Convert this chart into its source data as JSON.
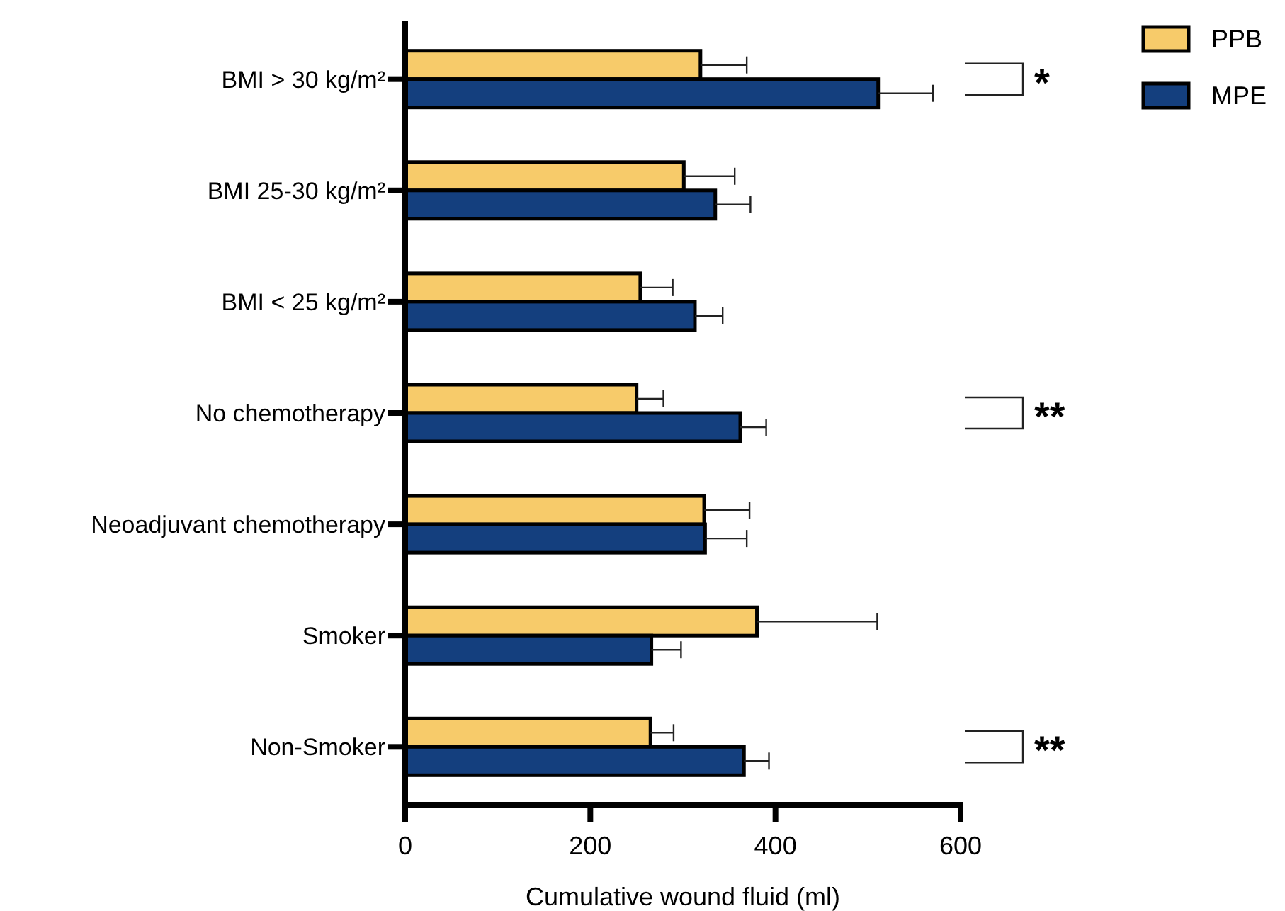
{
  "chart_data": {
    "type": "bar",
    "orientation": "horizontal",
    "xlabel": "Cumulative wound fluid (ml)",
    "categories": [
      "BMI > 30 kg/m²",
      "BMI 25-30 kg/m²",
      "BMI < 25 kg/m²",
      "No chemotherapy",
      "Neoadjuvant chemotherapy",
      "Smoker",
      "Non-Smoker"
    ],
    "series": [
      {
        "name": "PPB",
        "color": "#f7cb6a",
        "values": [
          319,
          301,
          254,
          250,
          323,
          380,
          265
        ],
        "errors": [
          50,
          55,
          35,
          29,
          49,
          130,
          25
        ]
      },
      {
        "name": "MPE",
        "color": "#143f7e",
        "values": [
          511,
          335,
          313,
          362,
          324,
          266,
          366
        ],
        "errors": [
          59,
          38,
          30,
          28,
          45,
          32,
          27
        ]
      }
    ],
    "xlim": [
      0,
      600
    ],
    "xticks": [
      0,
      200,
      400,
      600
    ],
    "legend": "top right",
    "grid": false,
    "annotations": [
      "*",
      "**",
      "**"
    ]
  }
}
